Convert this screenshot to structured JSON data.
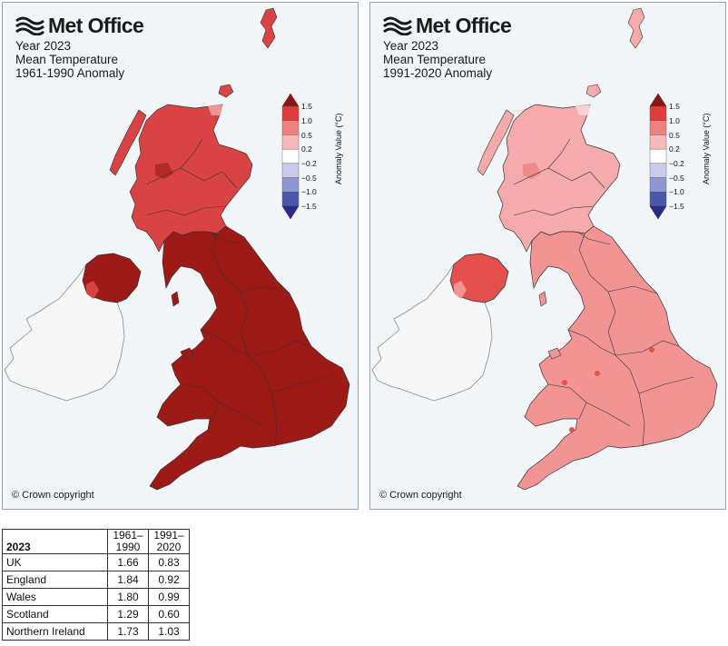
{
  "logo_text": "Met Office",
  "panels": [
    {
      "title_lines": [
        "Year 2023",
        "Mean Temperature",
        "1961-1990 Anomaly"
      ],
      "copyright": "© Crown copyright",
      "region_colors": {
        "scotland": "#d94343",
        "scotland_hi": "#b32a28",
        "scotland_lo": "#f29494",
        "n_ireland": "#9d1a16",
        "n_ireland_edge": "#d94343",
        "england_wales": "#9d1a16",
        "shetland": "#d94343",
        "ireland": "#f7f7f7"
      }
    },
    {
      "title_lines": [
        "Year 2023",
        "Mean Temperature",
        "1991-2020 Anomaly"
      ],
      "copyright": "© Crown copyright",
      "region_colors": {
        "scotland": "#f5abab",
        "scotland_hi": "#f08a8a",
        "scotland_lo": "#fbd2d2",
        "n_ireland": "#e5504f",
        "n_ireland_edge": "#f29494",
        "england_wales": "#f29494",
        "shetland": "#f5abab",
        "ireland": "#f7f7f7",
        "hotspot": "#e5504f"
      }
    }
  ],
  "colorbar": {
    "label": "Anomaly Value (°C)",
    "ticks": [
      "1.5",
      "1.0",
      "0.5",
      "0.2",
      "−0.2",
      "−0.5",
      "−1.0",
      "−1.5"
    ],
    "colors": [
      "#e23b3b",
      "#f08080",
      "#f7b9b9",
      "#ffffff",
      "#c8cbe9",
      "#8f97d1",
      "#4958ac"
    ],
    "top_arrow_color": "#8b1512",
    "bottom_arrow_color": "#2a2a8a"
  },
  "table": {
    "corner": "2023",
    "headers": [
      [
        "1961–",
        "1990"
      ],
      [
        "1991–",
        "2020"
      ]
    ],
    "rows": [
      {
        "name": "UK",
        "v1": "1.66",
        "v2": "0.83"
      },
      {
        "name": "England",
        "v1": "1.84",
        "v2": "0.92"
      },
      {
        "name": "Wales",
        "v1": "1.80",
        "v2": "0.99"
      },
      {
        "name": "Scotland",
        "v1": "1.29",
        "v2": "0.60"
      },
      {
        "name": "Northern Ireland",
        "v1": "1.73",
        "v2": "1.03"
      }
    ]
  }
}
